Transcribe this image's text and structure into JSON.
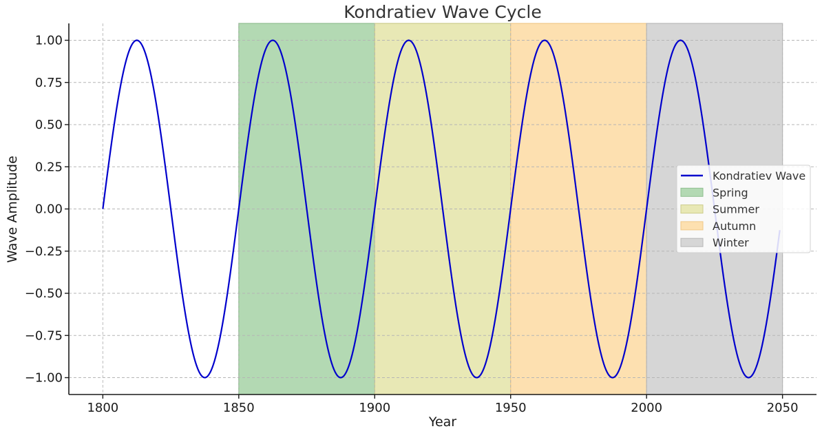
{
  "chart_data": {
    "type": "line",
    "title": "Kondratiev Wave Cycle",
    "xlabel": "Year",
    "ylabel": "Wave Amplitude",
    "xlim": [
      1787.5,
      2062.5
    ],
    "ylim": [
      -1.1,
      1.1
    ],
    "x_ticks": [
      1800,
      1850,
      1900,
      1950,
      2000,
      2050
    ],
    "x_tick_labels": [
      "1800",
      "1850",
      "1900",
      "1950",
      "2000",
      "2050"
    ],
    "y_ticks": [
      1.0,
      0.75,
      0.5,
      0.25,
      0.0,
      -0.25,
      -0.5,
      -0.75,
      -1.0
    ],
    "y_tick_labels": [
      "1.00",
      "0.75",
      "0.50",
      "0.25",
      "0.00",
      "−0.25",
      "−0.50",
      "−0.75",
      "−1.00"
    ],
    "grid": true,
    "legend_position": "center-right",
    "series": [
      {
        "name": "Kondratiev Wave",
        "color": "#0000cc",
        "function": "sine",
        "amplitude": 1.0,
        "period_years": 50,
        "phase_zero_year": 1800,
        "x_start": 1800,
        "x_end": 2049
      }
    ],
    "bands": [
      {
        "name": "Spring",
        "x_start": 1850,
        "x_end": 1900,
        "color": "#b3d9b3",
        "edge": "#8fbf8f"
      },
      {
        "name": "Summer",
        "x_start": 1900,
        "x_end": 1950,
        "color": "#e8e8b5",
        "edge": "#cccc8a"
      },
      {
        "name": "Autumn",
        "x_start": 1950,
        "x_end": 2000,
        "color": "#fde0b0",
        "edge": "#f0c888"
      },
      {
        "name": "Winter",
        "x_start": 2000,
        "x_end": 2050,
        "color": "#d6d6d6",
        "edge": "#b8b8b8"
      }
    ]
  }
}
